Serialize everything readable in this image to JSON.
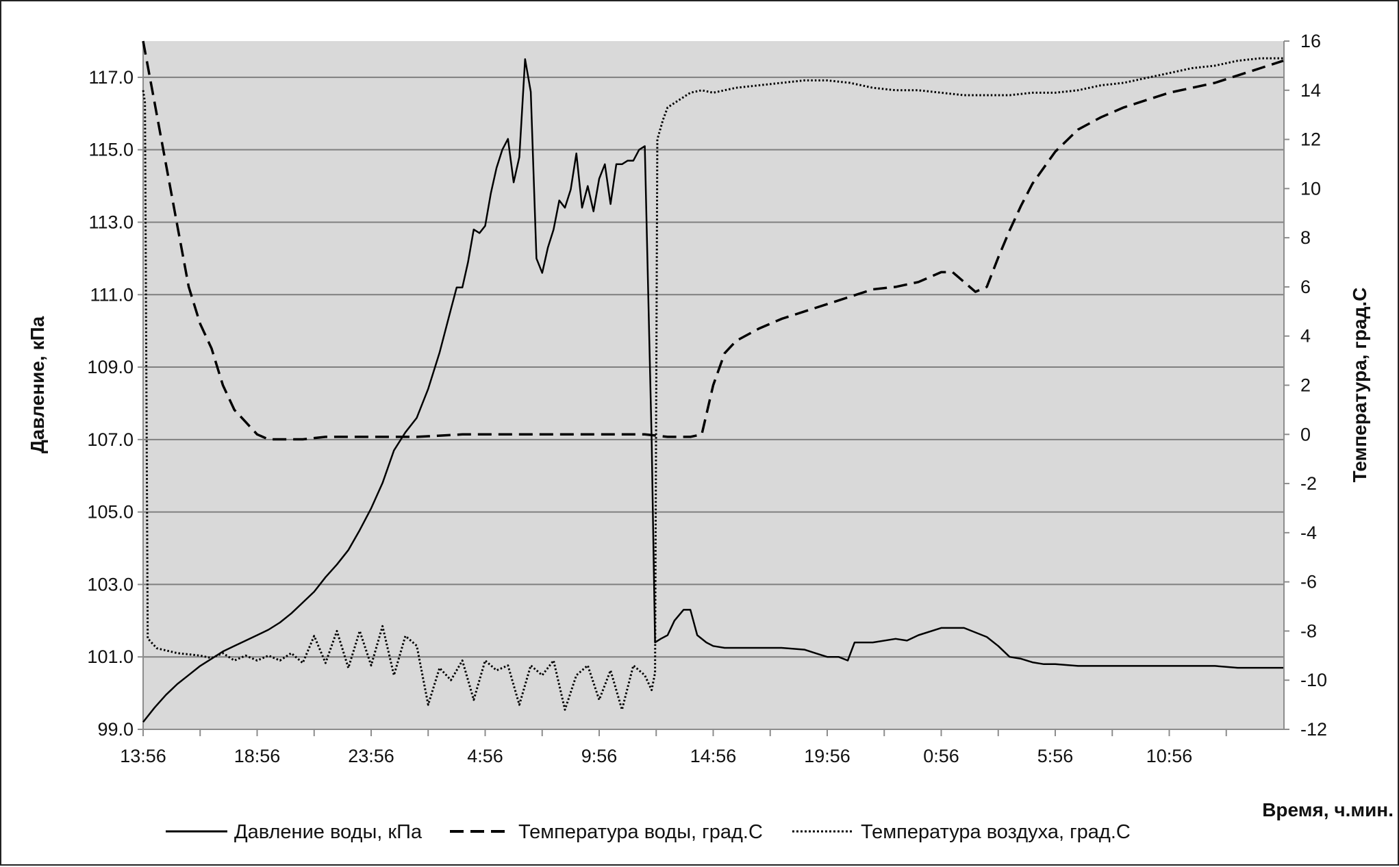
{
  "chart_data": {
    "type": "line",
    "xlabel": "Время, ч.мин.",
    "ylabel_left": "Давление, кПа",
    "ylabel_right": "Температура, град.С",
    "y_left_lim": [
      99.0,
      118.0
    ],
    "y_right_lim": [
      -12,
      16
    ],
    "y_left_ticks": [
      "99.0",
      "101.0",
      "103.0",
      "105.0",
      "107.0",
      "109.0",
      "111.0",
      "113.0",
      "115.0",
      "117.0"
    ],
    "y_left_tick_values": [
      99,
      101,
      103,
      105,
      107,
      109,
      111,
      113,
      115,
      117
    ],
    "y_right_ticks": [
      "-12",
      "-10",
      "-8",
      "-6",
      "-4",
      "-2",
      "0",
      "2",
      "4",
      "6",
      "8",
      "10",
      "12",
      "14",
      "16"
    ],
    "y_right_tick_values": [
      -12,
      -10,
      -8,
      -6,
      -4,
      -2,
      0,
      2,
      4,
      6,
      8,
      10,
      12,
      14,
      16
    ],
    "x_hours_range": [
      0,
      50
    ],
    "x_ticks": [
      {
        "label": "13:56",
        "h": 0
      },
      {
        "label": "18:56",
        "h": 5
      },
      {
        "label": "23:56",
        "h": 10
      },
      {
        "label": "4:56",
        "h": 15
      },
      {
        "label": "9:56",
        "h": 20
      },
      {
        "label": "14:56",
        "h": 25
      },
      {
        "label": "19:56",
        "h": 30
      },
      {
        "label": "0:56",
        "h": 35
      },
      {
        "label": "5:56",
        "h": 40
      },
      {
        "label": "10:56",
        "h": 45
      }
    ],
    "x_minor_ticks_h": [
      2.5,
      7.5,
      12.5,
      17.5,
      22.5,
      27.5,
      32.5,
      37.5,
      42.5,
      47.5
    ],
    "horizontal_grid": true,
    "legend_position": "bottom",
    "series": [
      {
        "name": "Давление воды, кПа",
        "axis": "left",
        "style": "solid",
        "x_h": [
          0,
          0.5,
          1,
          1.5,
          2,
          2.5,
          3,
          3.5,
          4,
          4.5,
          5,
          5.5,
          6,
          6.5,
          7,
          7.5,
          8,
          8.5,
          9,
          9.5,
          10,
          10.5,
          11,
          11.5,
          12,
          12.5,
          13,
          13.25,
          13.5,
          13.75,
          14,
          14.25,
          14.5,
          14.75,
          15,
          15.25,
          15.5,
          15.75,
          16,
          16.25,
          16.5,
          16.75,
          17,
          17.25,
          17.5,
          17.75,
          18,
          18.25,
          18.5,
          18.75,
          19,
          19.25,
          19.5,
          19.75,
          20,
          20.25,
          20.5,
          20.75,
          21,
          21.25,
          21.5,
          21.75,
          22,
          22.3,
          22.45,
          22.7,
          23,
          23.3,
          23.7,
          24,
          24.3,
          24.7,
          25,
          25.5,
          26,
          27,
          28,
          29,
          29.5,
          30,
          30.5,
          30.9,
          31.2,
          32,
          33,
          33.5,
          34,
          35,
          36,
          37,
          37.5,
          38,
          38.5,
          39,
          39.5,
          40,
          41,
          42,
          43,
          44,
          45,
          46,
          47,
          48,
          49,
          50
        ],
        "values": [
          99.2,
          99.6,
          99.95,
          100.25,
          100.5,
          100.75,
          100.95,
          101.15,
          101.3,
          101.45,
          101.6,
          101.75,
          101.95,
          102.2,
          102.5,
          102.8,
          103.2,
          103.55,
          103.95,
          104.5,
          105.1,
          105.8,
          106.7,
          107.2,
          107.6,
          108.4,
          109.4,
          110.0,
          110.6,
          111.2,
          111.2,
          111.9,
          112.8,
          112.7,
          112.9,
          113.8,
          114.5,
          115.0,
          115.3,
          114.1,
          114.8,
          117.5,
          116.6,
          112.0,
          111.6,
          112.3,
          112.8,
          113.6,
          113.4,
          113.9,
          114.9,
          113.4,
          114.0,
          113.3,
          114.2,
          114.6,
          113.5,
          114.6,
          114.6,
          114.7,
          114.7,
          115.0,
          115.1,
          107.0,
          101.4,
          101.5,
          101.6,
          102.0,
          102.3,
          102.3,
          101.6,
          101.4,
          101.3,
          101.25,
          101.25,
          101.25,
          101.25,
          101.2,
          101.1,
          101.0,
          101.0,
          100.9,
          101.4,
          101.4,
          101.5,
          101.45,
          101.6,
          101.8,
          101.8,
          101.55,
          101.3,
          101.0,
          100.95,
          100.85,
          100.8,
          100.8,
          100.75,
          100.75,
          100.75,
          100.75,
          100.75,
          100.75,
          100.75,
          100.7,
          100.7,
          100.7
        ]
      },
      {
        "name": "Температура воды, град.С",
        "axis": "right",
        "style": "dashed",
        "x_h": [
          0,
          0.5,
          1,
          1.5,
          2,
          2.5,
          3,
          3.5,
          4,
          4.5,
          5,
          5.5,
          6,
          7,
          8,
          10,
          12,
          14,
          16,
          18,
          20,
          22,
          23,
          24,
          24.5,
          25,
          25.5,
          26,
          27,
          28,
          29,
          30,
          31,
          32,
          33,
          34,
          35,
          35.5,
          36,
          36.5,
          37,
          37.5,
          38,
          38.5,
          39,
          40,
          41,
          42,
          43,
          44,
          45,
          46,
          47,
          48,
          49,
          50
        ],
        "values": [
          16,
          13.5,
          11,
          8.5,
          6,
          4.5,
          3.5,
          2,
          1,
          0.5,
          0,
          -0.2,
          -0.2,
          -0.2,
          -0.1,
          -0.1,
          -0.1,
          0,
          0,
          0,
          0,
          0,
          -0.1,
          -0.1,
          0,
          2,
          3.3,
          3.8,
          4.3,
          4.7,
          5.0,
          5.3,
          5.6,
          5.9,
          6.0,
          6.2,
          6.6,
          6.6,
          6.2,
          5.8,
          6.0,
          7.2,
          8.3,
          9.3,
          10.2,
          11.5,
          12.4,
          12.9,
          13.3,
          13.6,
          13.9,
          14.1,
          14.3,
          14.6,
          14.9,
          15.2
        ]
      },
      {
        "name": "Температура воздуха, град.С",
        "axis": "right",
        "style": "dotted",
        "x_h": [
          0,
          0.08,
          0.2,
          0.6,
          1.5,
          2.5,
          3,
          3.5,
          4,
          4.5,
          5,
          5.5,
          6,
          6.5,
          7,
          7.5,
          8,
          8.5,
          9,
          9.5,
          10,
          10.5,
          11,
          11.5,
          12,
          12.5,
          13,
          13.5,
          14,
          14.5,
          15,
          15.5,
          16,
          16.5,
          17,
          17.5,
          18,
          18.5,
          19,
          19.5,
          20,
          20.5,
          21,
          21.5,
          22,
          22.3,
          22.45,
          22.55,
          22.8,
          23,
          23.5,
          24,
          24.5,
          25,
          26,
          27,
          28,
          29,
          30,
          31,
          32,
          33,
          34,
          35,
          36,
          37,
          38,
          39,
          40,
          41,
          42,
          43,
          44,
          45,
          46,
          47,
          48,
          49,
          50
        ],
        "values": [
          14,
          13.5,
          -8.3,
          -8.7,
          -8.9,
          -9.0,
          -9.1,
          -8.9,
          -9.2,
          -9.0,
          -9.2,
          -9.0,
          -9.2,
          -8.9,
          -9.3,
          -8.2,
          -9.3,
          -8.0,
          -9.5,
          -8.0,
          -9.4,
          -7.8,
          -9.8,
          -8.2,
          -8.6,
          -11.0,
          -9.5,
          -10.0,
          -9.2,
          -10.8,
          -9.2,
          -9.6,
          -9.4,
          -11.0,
          -9.4,
          -9.8,
          -9.2,
          -11.2,
          -9.8,
          -9.4,
          -10.8,
          -9.6,
          -11.2,
          -9.4,
          -9.8,
          -10.4,
          -9.7,
          12.0,
          12.8,
          13.3,
          13.6,
          13.9,
          14.0,
          13.9,
          14.1,
          14.2,
          14.3,
          14.4,
          14.4,
          14.3,
          14.1,
          14.0,
          14.0,
          13.9,
          13.8,
          13.8,
          13.8,
          13.9,
          13.9,
          14.0,
          14.2,
          14.3,
          14.5,
          14.7,
          14.9,
          15.0,
          15.2,
          15.3,
          15.3
        ]
      }
    ]
  }
}
